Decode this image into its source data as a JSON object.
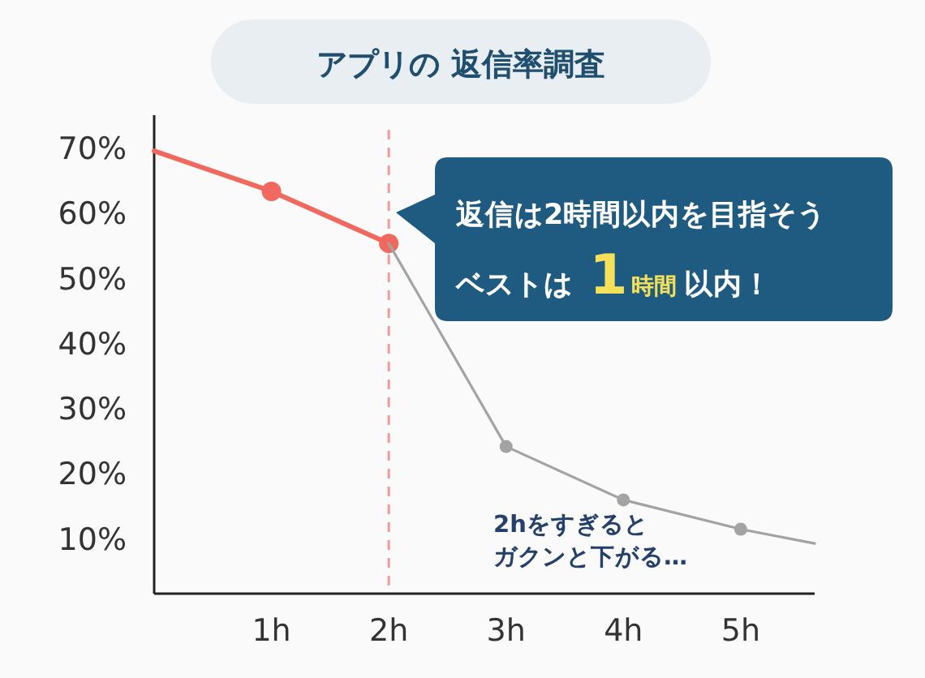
{
  "chart_data": {
    "type": "line",
    "title": "アプリの 返信率調査",
    "series": [
      {
        "color": "#f0685e",
        "x": [
          0,
          1,
          2
        ],
        "values": [
          69.5,
          63.3,
          55.3
        ]
      },
      {
        "color": "#a3a3a3",
        "x": [
          2,
          3,
          4,
          5,
          5.63
        ],
        "values": [
          55.3,
          24.1,
          15.9,
          11.4,
          9.2
        ]
      }
    ],
    "xlim": [
      0,
      5.63
    ],
    "ylim": [
      1.5,
      75
    ],
    "xticks": [
      {
        "value": 1,
        "label": "1h"
      },
      {
        "value": 2,
        "label": "2h"
      },
      {
        "value": 3,
        "label": "3h"
      },
      {
        "value": 4,
        "label": "4h"
      },
      {
        "value": 5,
        "label": "5h"
      }
    ],
    "yticks": [
      {
        "value": 10,
        "label": "10%"
      },
      {
        "value": 20,
        "label": "20%"
      },
      {
        "value": 30,
        "label": "30%"
      },
      {
        "value": 40,
        "label": "40%"
      },
      {
        "value": 50,
        "label": "50%"
      },
      {
        "value": 60,
        "label": "60%"
      },
      {
        "value": 70,
        "label": "70%"
      }
    ],
    "ref_lines": [
      {
        "axis": "x",
        "value": 2,
        "color": "#f29a9a",
        "line_style": "dashed"
      }
    ],
    "annotations": [
      "返信は2時間以内を目指そう",
      "ベストは **1時間** 以内！",
      "2hをすぎると",
      "ガクンと下がる…"
    ],
    "marker": "circle",
    "grid": false
  }
}
